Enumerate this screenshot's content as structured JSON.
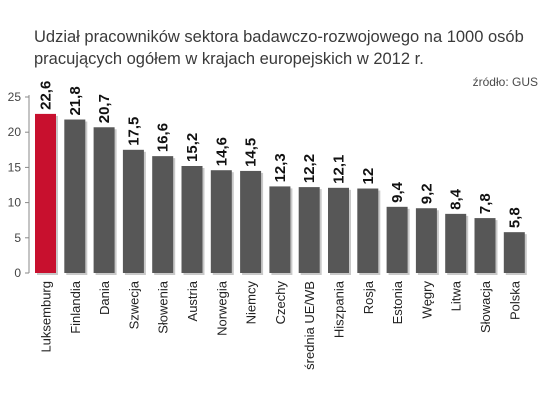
{
  "header": {
    "title": "Udział pracowników sektora badawczo-rozwojowego na 1000 osób pracujących ogółem w krajach europejskich w 2012 r.",
    "source": "źródło: GUS"
  },
  "colors": {
    "bar": "#575757",
    "highlight": "#c8102e",
    "background": "#ffffff"
  },
  "chart_data": {
    "type": "bar",
    "title": "Udział pracowników sektora badawczo-rozwojowego na 1000 osób pracujących ogółem w krajach europejskich w 2012 r.",
    "categories": [
      "Luksemburg",
      "Finlandia",
      "Dania",
      "Szwecja",
      "Słowenia",
      "Austria",
      "Norwegia",
      "Niemcy",
      "Czechy",
      "średnia UE/WB",
      "Hiszpania",
      "Rosja",
      "Estonia",
      "Węgry",
      "Litwa",
      "Słowacja",
      "Polska"
    ],
    "values": [
      22.6,
      21.8,
      20.7,
      17.5,
      16.6,
      15.2,
      14.6,
      14.5,
      12.3,
      12.2,
      12.1,
      12,
      9.4,
      9.2,
      8.4,
      7.8,
      5.8
    ],
    "value_labels": [
      "22,6",
      "21,8",
      "20,7",
      "17,5",
      "16,6",
      "15,2",
      "14,6",
      "14,5",
      "12,3",
      "12,2",
      "12,1",
      "12",
      "9,4",
      "9,2",
      "8,4",
      "7,8",
      "5,8"
    ],
    "highlight_index": 0,
    "yticks": [
      0,
      5,
      10,
      15,
      20,
      25
    ],
    "ylim": [
      0,
      25
    ],
    "grid": false,
    "legend": "none"
  }
}
